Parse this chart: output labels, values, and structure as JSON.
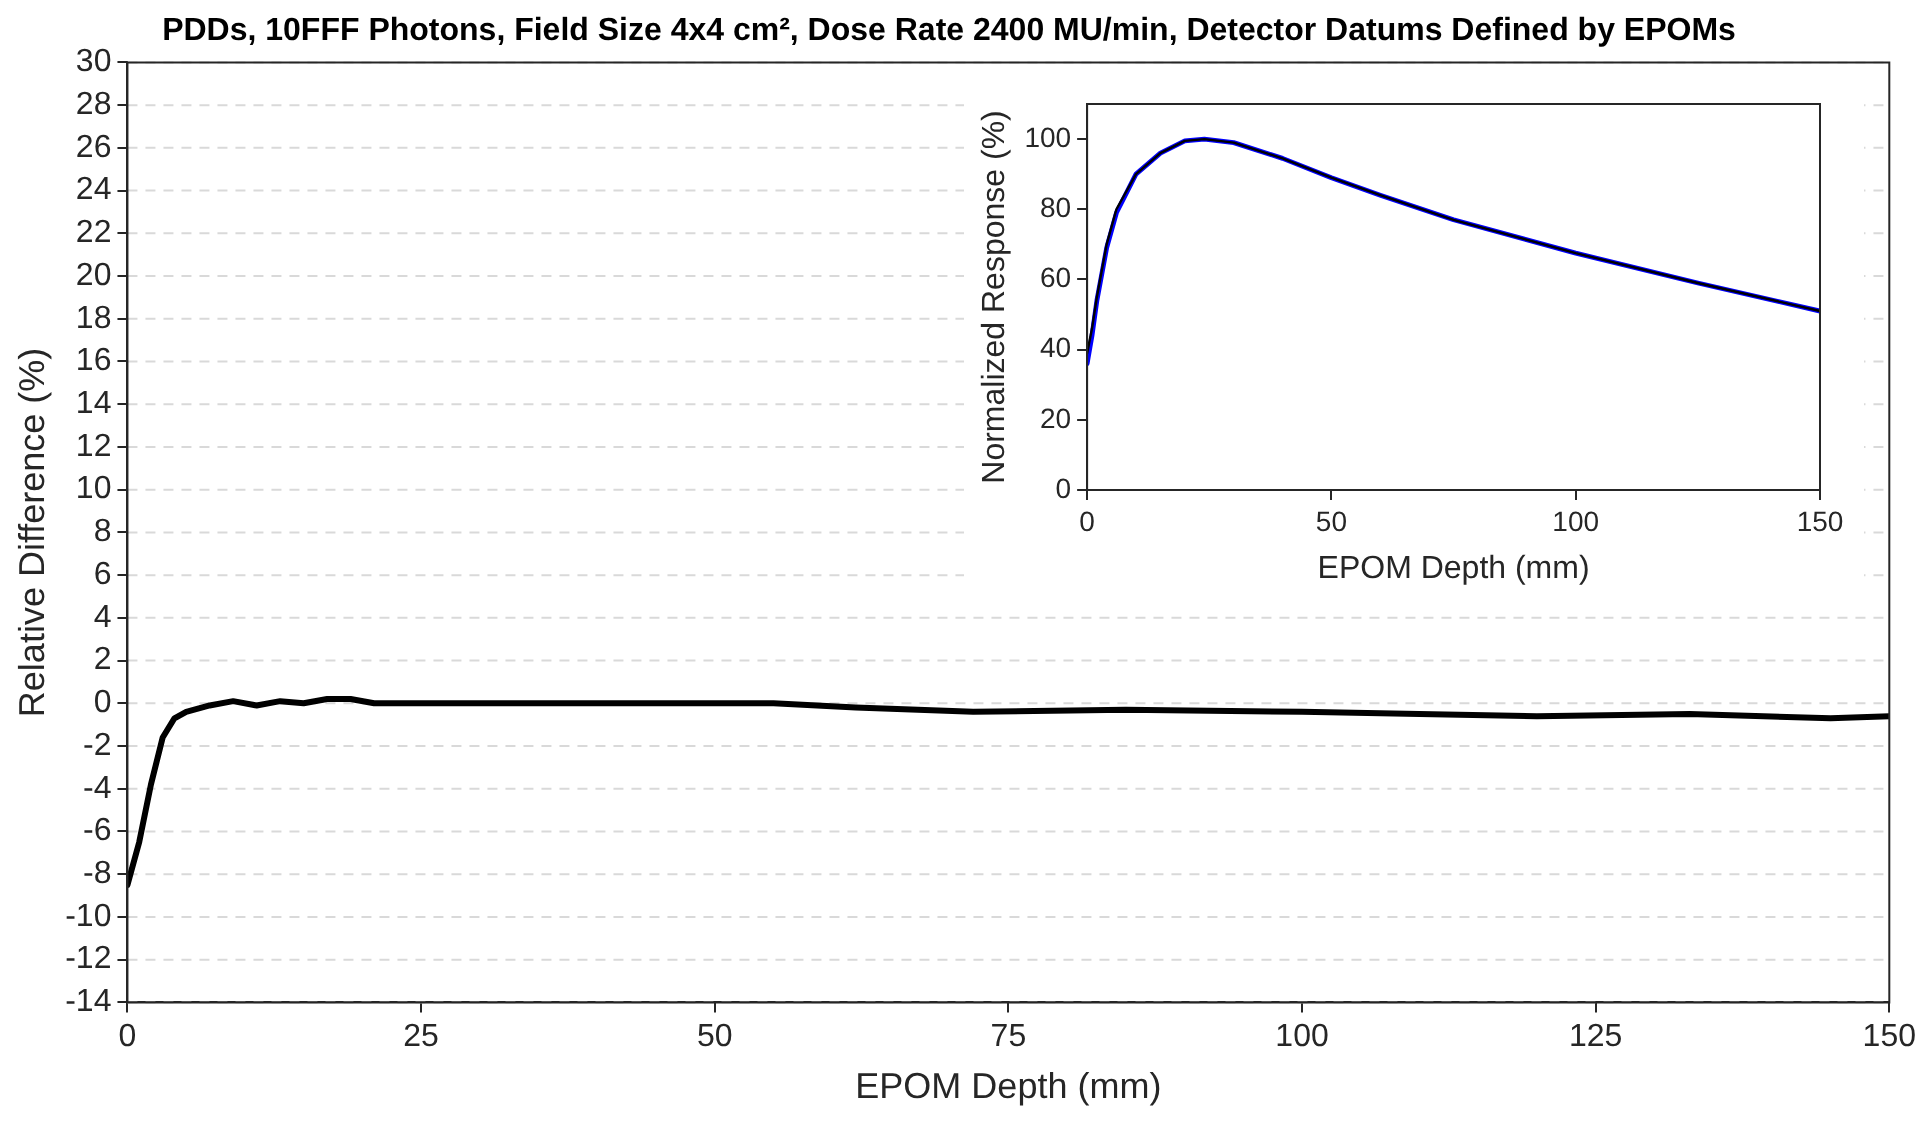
{
  "chart_data": [
    {
      "type": "line",
      "title": "PDDs, 10FFF Photons, Field Size 4x4 cm², Dose Rate 2400 MU/min, Detector Datums Defined by EPOMs",
      "xlabel": "EPOM Depth (mm)",
      "ylabel": "Relative Difference (%)",
      "xlim": [
        0,
        150
      ],
      "xticks": [
        0,
        25,
        50,
        75,
        100,
        125,
        150
      ],
      "ylim": [
        -14,
        30
      ],
      "yticks": [
        -14,
        -12,
        -10,
        -8,
        -6,
        -4,
        -2,
        0,
        2,
        4,
        6,
        8,
        10,
        12,
        14,
        16,
        18,
        20,
        22,
        24,
        26,
        28,
        30
      ],
      "grid": "y",
      "legend": false,
      "marker": "none",
      "line_style": "solid",
      "series": [
        {
          "color": "#000000",
          "x": [
            0,
            1,
            2,
            3,
            4,
            5,
            7,
            9,
            11,
            13,
            15,
            17,
            19,
            21,
            24,
            30,
            40,
            48,
            55,
            62,
            72,
            85,
            100,
            110,
            120,
            133,
            145,
            150
          ],
          "values": [
            -8.5,
            -6.5,
            -3.8,
            -1.6,
            -0.7,
            -0.4,
            -0.1,
            0.1,
            -0.1,
            0.1,
            0,
            0.2,
            0.2,
            0,
            0,
            0,
            0,
            0,
            0,
            -0.2,
            -0.4,
            -0.3,
            -0.4,
            -0.5,
            -0.6,
            -0.5,
            -0.7,
            -0.6
          ]
        }
      ]
    },
    {
      "type": "line",
      "xlabel": "EPOM Depth (mm)",
      "ylabel": "Normalized Response (%)",
      "xlim": [
        0,
        150
      ],
      "xticks": [
        0,
        50,
        100,
        150
      ],
      "ylim": [
        0,
        110
      ],
      "yticks": [
        0,
        20,
        40,
        60,
        80,
        100
      ],
      "legend": false,
      "marker": "none",
      "line_style": "solid",
      "series": [
        {
          "color": "#0000ff",
          "x": [
            0,
            1,
            2,
            4,
            6,
            10,
            15,
            20,
            24,
            30,
            40,
            50,
            60,
            75,
            100,
            125,
            150
          ],
          "values": [
            36,
            44,
            54,
            69,
            79,
            90,
            96,
            99.5,
            100,
            99,
            94.5,
            89,
            84,
            77,
            67.5,
            59,
            51
          ]
        },
        {
          "color": "#000000",
          "x": [
            0,
            1,
            2,
            4,
            6,
            10,
            15,
            20,
            24,
            30,
            40,
            50,
            60,
            75,
            100,
            125,
            150
          ],
          "values": [
            39,
            46,
            55,
            70,
            80,
            90,
            96,
            99.5,
            100,
            99,
            94.5,
            89,
            84,
            77,
            67.5,
            59,
            51
          ]
        }
      ]
    }
  ]
}
